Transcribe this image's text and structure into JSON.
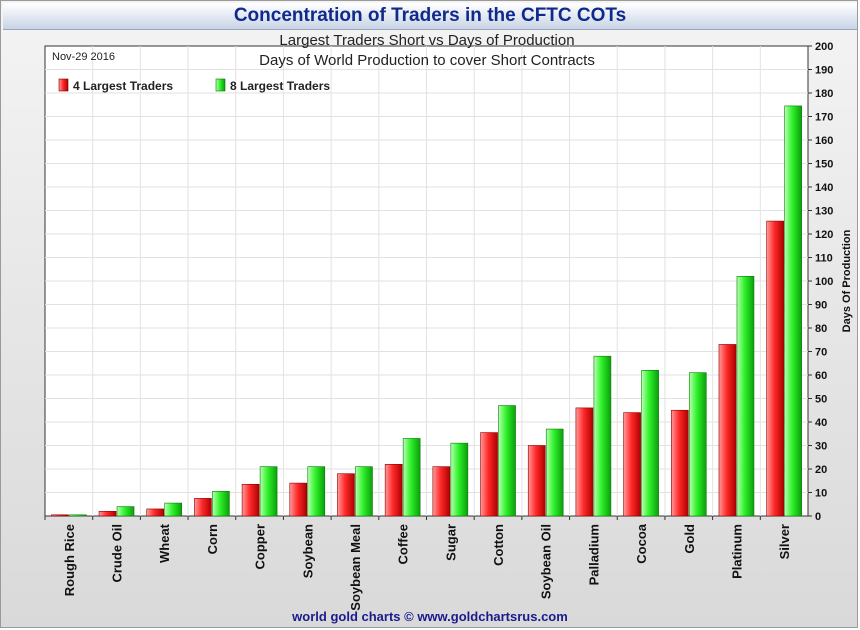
{
  "chart_data": {
    "type": "bar",
    "title": "Concentration of Traders in the CFTC COTs",
    "subtitle": "Largest Traders Short vs Days of Production",
    "subtitle2": "Days of World Production to cover Short Contracts",
    "date_label": "Nov-29  2016",
    "ylabel": "Days Of Production",
    "ylim": [
      0,
      200
    ],
    "y_ticks": [
      0,
      10,
      20,
      30,
      40,
      50,
      60,
      70,
      80,
      90,
      100,
      110,
      120,
      130,
      140,
      150,
      160,
      170,
      180,
      190,
      200
    ],
    "grid": true,
    "legend_position": "top-left",
    "categories": [
      "Rough Rice",
      "Crude Oil",
      "Wheat",
      "Corn",
      "Copper",
      "Soybean",
      "Soybean Meal",
      "Coffee",
      "Sugar",
      "Cotton",
      "Soybean Oil",
      "Palladium",
      "Cocoa",
      "Gold",
      "Platinum",
      "Silver"
    ],
    "series": [
      {
        "name": "4 Largest Traders",
        "color": "#e8161a",
        "values": [
          0.5,
          2,
          3,
          7.5,
          13.5,
          14,
          18,
          22,
          21,
          35.5,
          30,
          46,
          44,
          45,
          73,
          125.5
        ]
      },
      {
        "name": "8 Largest Traders",
        "color": "#22e01e",
        "values": [
          0.5,
          4,
          5.5,
          10.5,
          21,
          21,
          21,
          33,
          31,
          47,
          37,
          68,
          62,
          61,
          102,
          174.5
        ]
      }
    ],
    "footer": "world gold charts © www.goldchartsrus.com"
  }
}
